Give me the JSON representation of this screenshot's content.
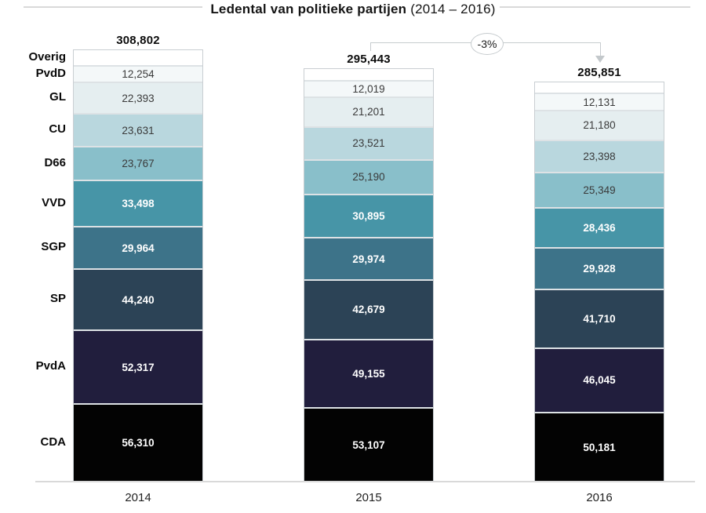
{
  "title": {
    "bold": "Ledental van politieke partijen",
    "range": "(2014 – 2016)"
  },
  "annotation": {
    "label": "-3%"
  },
  "chart_data": {
    "type": "bar",
    "stacked": true,
    "title": "Ledental van politieke partijen (2014 – 2016)",
    "grid": false,
    "legend_position": "left-row-labels",
    "categories": [
      "2014",
      "2015",
      "2016"
    ],
    "totals": [
      308802,
      295443,
      285851
    ],
    "totals_display": [
      "308,802",
      "295,443",
      "285,851"
    ],
    "annotation_change": "-3%",
    "series": [
      {
        "name": "Overig",
        "color": "#ffffff",
        "text": "none",
        "values": null,
        "display": [
          "",
          "",
          ""
        ]
      },
      {
        "name": "PvdD",
        "color": "#f4f8f9",
        "text": "dark",
        "values": [
          12254,
          12019,
          12131
        ],
        "display": [
          "12,254",
          "12,019",
          "12,131"
        ]
      },
      {
        "name": "GL",
        "color": "#e5eef0",
        "text": "dark",
        "values": [
          22393,
          21201,
          21180
        ],
        "display": [
          "22,393",
          "21,201",
          "21,180"
        ]
      },
      {
        "name": "CU",
        "color": "#b9d7de",
        "text": "dark",
        "values": [
          23631,
          23521,
          23398
        ],
        "display": [
          "23,631",
          "23,521",
          "23,398"
        ]
      },
      {
        "name": "D66",
        "color": "#89bfca",
        "text": "dark",
        "values": [
          23767,
          25190,
          25349
        ],
        "display": [
          "23,767",
          "25,190",
          "25,349"
        ]
      },
      {
        "name": "VVD",
        "color": "#4795a7",
        "text": "light",
        "values": [
          33498,
          30895,
          28436
        ],
        "display": [
          "33,498",
          "30,895",
          "28,436"
        ]
      },
      {
        "name": "SGP",
        "color": "#3d7389",
        "text": "light",
        "values": [
          29964,
          29974,
          29928
        ],
        "display": [
          "29,964",
          "29,974",
          "29,928"
        ]
      },
      {
        "name": "SP",
        "color": "#2c4356",
        "text": "light",
        "values": [
          44240,
          42679,
          41710
        ],
        "display": [
          "44,240",
          "42,679",
          "41,710"
        ]
      },
      {
        "name": "PvdA",
        "color": "#211e3d",
        "text": "light",
        "values": [
          52317,
          49155,
          46045
        ],
        "display": [
          "52,317",
          "49,155",
          "46,045"
        ]
      },
      {
        "name": "CDA",
        "color": "#030303",
        "text": "light",
        "values": [
          56310,
          53107,
          50181
        ],
        "display": [
          "56,310",
          "53,107",
          "50,181"
        ]
      }
    ],
    "lines_color": "#d9d9d9"
  }
}
